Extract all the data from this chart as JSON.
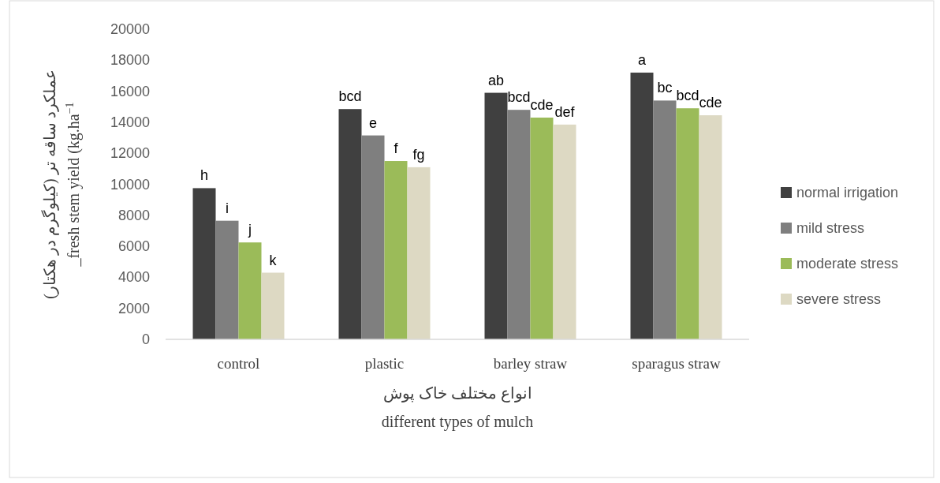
{
  "chart_data": {
    "type": "bar",
    "categories": [
      "control",
      "plastic",
      "barley straw",
      "sparagus straw"
    ],
    "series": [
      {
        "name": "normal irrigation",
        "color": "#404040",
        "values": [
          9750,
          14850,
          15900,
          17200
        ],
        "value_labels": [
          "h",
          "bcd",
          "ab",
          "a"
        ]
      },
      {
        "name": "mild stress",
        "color": "#7f7f7f",
        "values": [
          7650,
          13150,
          14800,
          15400
        ],
        "value_labels": [
          "i",
          "e",
          "bcd",
          "bc"
        ]
      },
      {
        "name": "moderate stress",
        "color": "#9bbb59",
        "values": [
          6250,
          11500,
          14300,
          14900
        ],
        "value_labels": [
          "j",
          "f",
          "cde",
          "bcd"
        ]
      },
      {
        "name": "severe stress",
        "color": "#ddd9c3",
        "values": [
          4300,
          11100,
          13850,
          14450
        ],
        "value_labels": [
          "k",
          "fg",
          "def",
          "cde"
        ]
      }
    ],
    "ylim": [
      0,
      20000
    ],
    "yticks": [
      0,
      2000,
      4000,
      6000,
      8000,
      10000,
      12000,
      14000,
      16000,
      18000,
      20000
    ],
    "ylabel": "عملکرد ساقه تر (کیلوگرم در هکتار)\n_fresh stem yield (kg.ha$^{−1}$",
    "xlabel": "انواع مختلف خاک پوش\ndifferent types of mulch",
    "legend": "right"
  }
}
